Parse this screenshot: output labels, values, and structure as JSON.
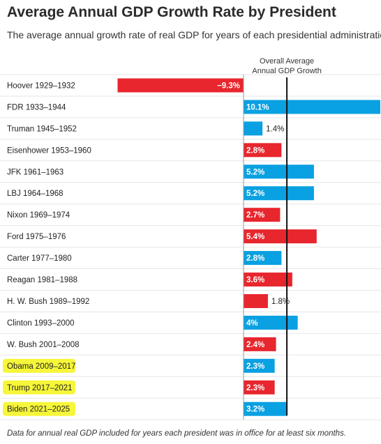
{
  "title": "Average Annual GDP Growth Rate by President",
  "subtitle": "The average annual growth rate of real GDP for years of each presidential administration",
  "footnote": "Data for annual real GDP included for years each president was in office for at least six months.",
  "colors": {
    "democrat": "#0aa1e2",
    "republican": "#e8262d",
    "highlight": "#f6f63a",
    "average_line": "#111111",
    "grid": "#e6e6e6",
    "axis": "#999999"
  },
  "chart_data": {
    "type": "bar",
    "title": "Average Annual GDP Growth Rate by President",
    "subtitle": "The average annual growth rate of real GDP for years of each presidential administration",
    "orientation": "horizontal",
    "xlim": [
      -9.3,
      10.1
    ],
    "average_label": [
      "Overall Average",
      "Annual GDP Growth"
    ],
    "average_value": 3.2,
    "categories": [
      "Hoover 1929–1932",
      "FDR 1933–1944",
      "Truman 1945–1952",
      "Eisenhower 1953–1960",
      "JFK 1961–1963",
      "LBJ 1964–1968",
      "Nixon 1969–1974",
      "Ford 1975–1976",
      "Carter 1977–1980",
      "Reagan 1981–1988",
      "H. W. Bush 1989–1992",
      "Clinton 1993–2000",
      "W. Bush 2001–2008",
      "Obama 2009–2017",
      "Trump 2017–2021",
      "Biden 2021–2025"
    ],
    "values": [
      -9.3,
      10.1,
      1.4,
      2.8,
      5.2,
      5.2,
      2.7,
      5.4,
      2.8,
      3.6,
      1.8,
      4.0,
      2.4,
      2.3,
      2.3,
      3.2
    ],
    "value_labels": [
      "−9.3%",
      "10.1%",
      "1.4%",
      "2.8%",
      "5.2%",
      "5.2%",
      "2.7%",
      "5.4%",
      "2.8%",
      "3.6%",
      "1.8%",
      "4%",
      "2.4%",
      "2.3%",
      "2.3%",
      "3.2%"
    ],
    "party": [
      "R",
      "D",
      "D",
      "R",
      "D",
      "D",
      "R",
      "R",
      "D",
      "R",
      "R",
      "D",
      "R",
      "D",
      "R",
      "D"
    ],
    "highlighted": [
      false,
      false,
      false,
      false,
      false,
      false,
      false,
      false,
      false,
      false,
      false,
      false,
      false,
      true,
      true,
      true
    ]
  }
}
